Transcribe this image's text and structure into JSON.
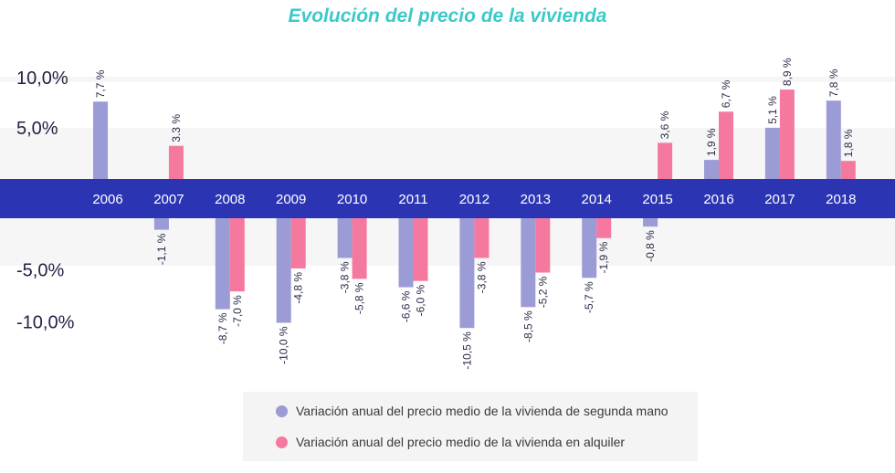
{
  "colors": {
    "title": "#3cc9c9",
    "resale": "#9b9bd6",
    "rent": "#f5799f",
    "band": "#2b35b3",
    "band_text": "#ffffff",
    "tick_text": "#222244",
    "label_text": "#2a2a4a",
    "grid_band": "#f6f6f6"
  },
  "chart_data": {
    "type": "bar",
    "title": "Evolución del precio de la vivienda",
    "categories": [
      "2006",
      "2007",
      "2008",
      "2009",
      "2010",
      "2011",
      "2012",
      "2013",
      "2014",
      "2015",
      "2016",
      "2017",
      "2018"
    ],
    "series": [
      {
        "name": "Variación anual del precio medio de la vivienda de segunda mano",
        "values": [
          7.7,
          -1.1,
          -8.7,
          -10.0,
          -3.8,
          -6.6,
          -10.5,
          -8.5,
          -5.7,
          -0.8,
          1.9,
          5.1,
          7.8
        ],
        "labels": [
          "7,7 %",
          "-1,1 %",
          "-8,7 %",
          "-10,0 %",
          "-3,8 %",
          "-6,6 %",
          "-10,5 %",
          "-8,5 %",
          "-5,7 %",
          "-0,8 %",
          "1,9 %",
          "5,1 %",
          "7,8 %"
        ]
      },
      {
        "name": "Variación anual del precio medio de la vivienda en alquiler",
        "values": [
          null,
          3.3,
          -7.0,
          -4.8,
          -5.8,
          -6.0,
          -3.8,
          -5.2,
          -1.9,
          3.6,
          6.7,
          8.9,
          1.8
        ],
        "labels": [
          null,
          "3.3 %",
          "-7,0 %",
          "-4,8 %",
          "-5,8 %",
          "-6,0 %",
          "-3,8 %",
          "-5,2 %",
          "-1,9 %",
          "3,6 %",
          "6,7 %",
          "8,9 %",
          "1,8 %"
        ]
      }
    ],
    "y_ticks": [
      {
        "value": 10,
        "label": "10,0%"
      },
      {
        "value": 5,
        "label": "5,0%"
      },
      {
        "value": -5,
        "label": "-5,0%"
      },
      {
        "value": -10,
        "label": "-10,0%"
      }
    ],
    "legend_position": "bottom-center"
  }
}
